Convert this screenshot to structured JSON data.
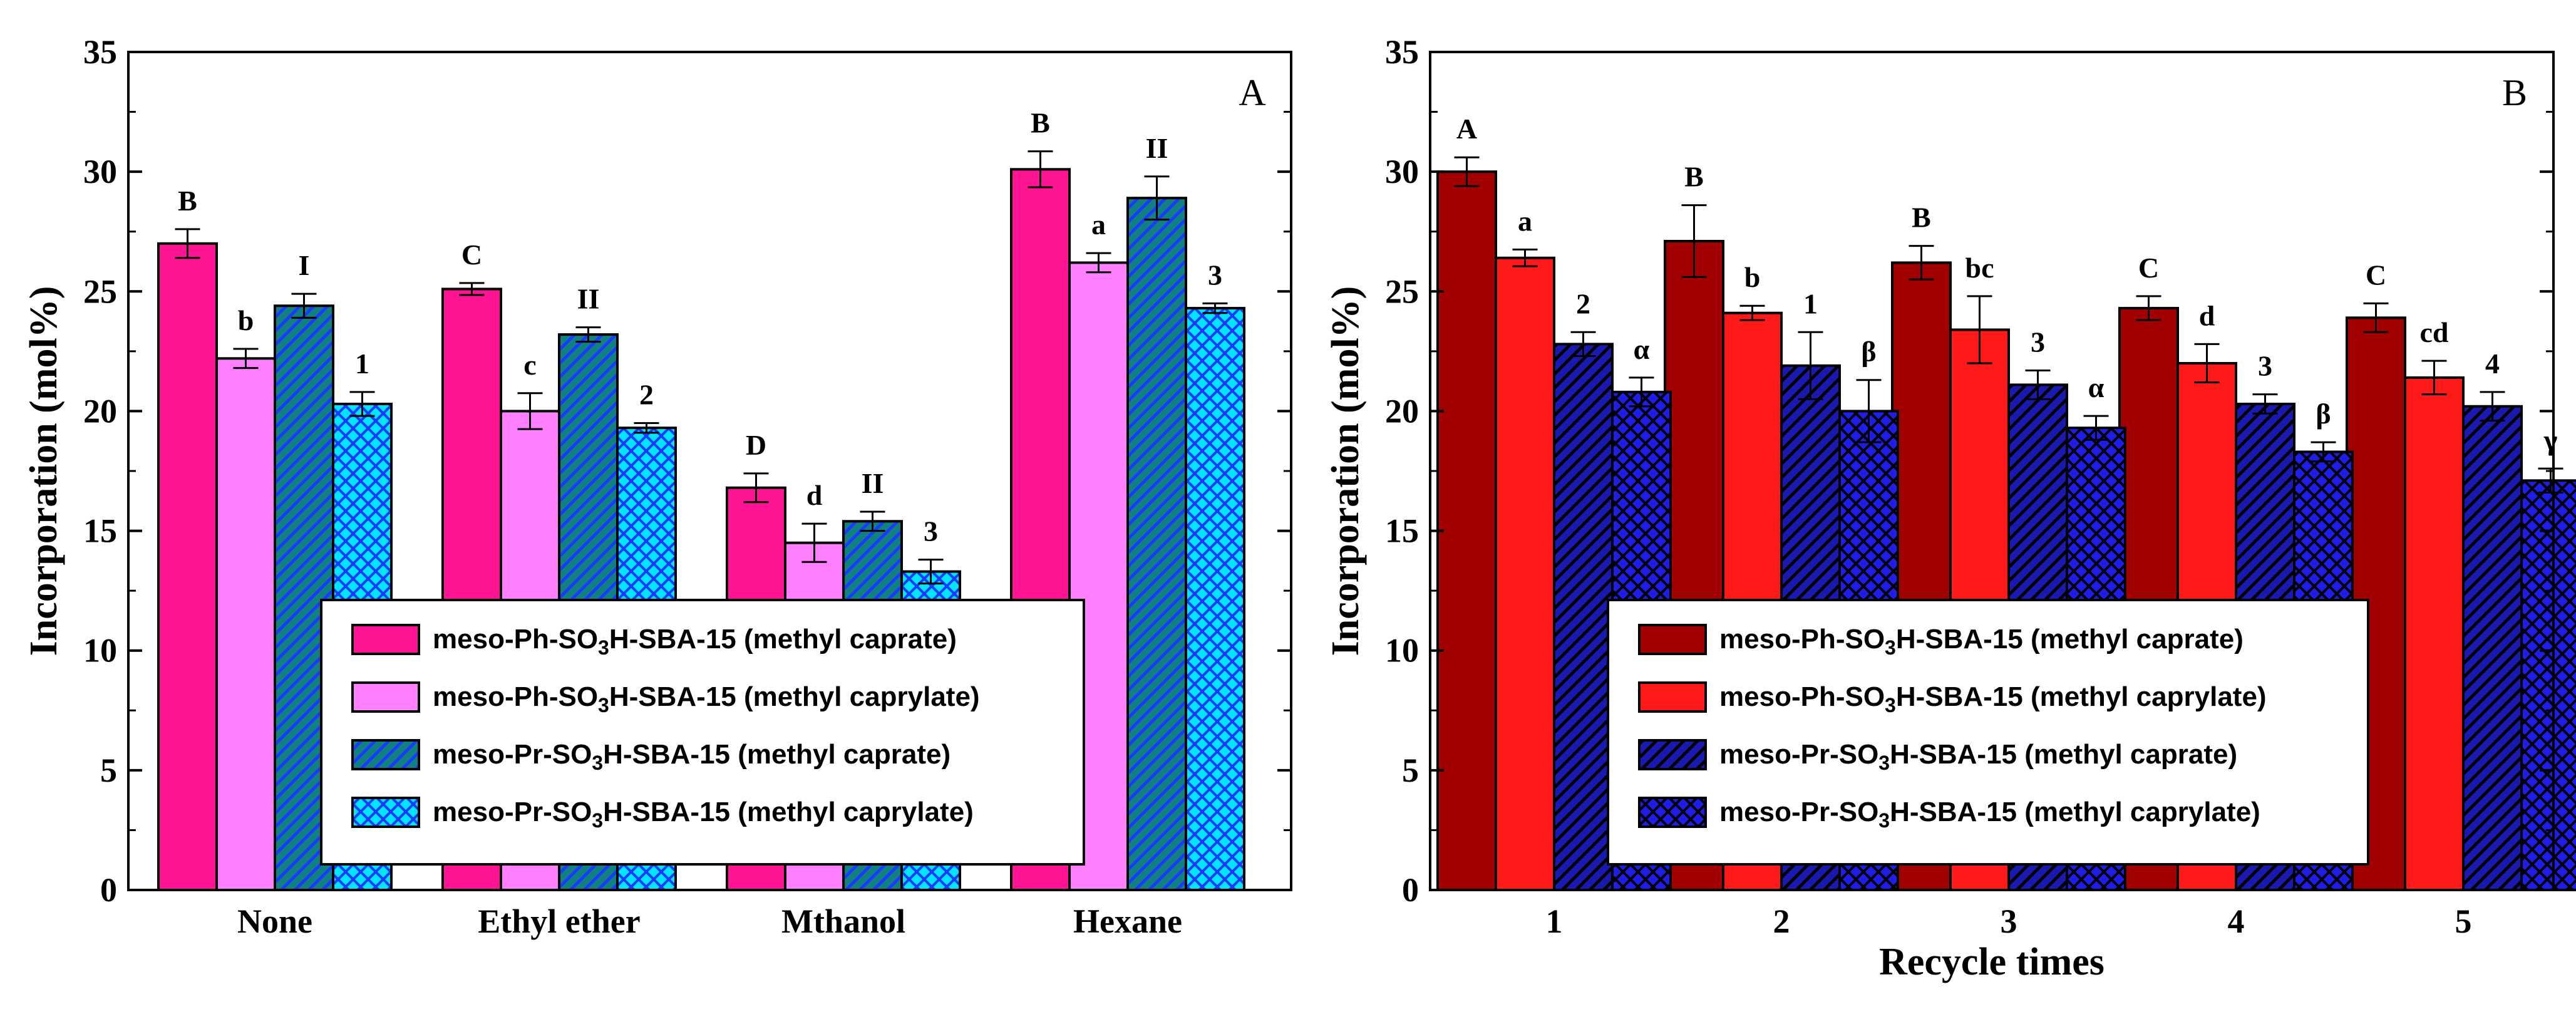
{
  "chart_data": [
    {
      "type": "bar",
      "panel_label": "A",
      "title": "",
      "xlabel": "",
      "ylabel": "Incorporation (mol%)",
      "ylim": [
        0,
        35
      ],
      "yticks": [
        "0",
        "5",
        "10",
        "15",
        "20",
        "25",
        "30",
        "35"
      ],
      "categories": [
        "None",
        "Ethyl ether",
        "Mthanol",
        "Hexane"
      ],
      "legend_position": "lower-right",
      "series": [
        {
          "name": "meso-Ph-SO3H-SBA-15 (methyl caprate)",
          "legend_parts": [
            "meso-Ph-SO",
            "3",
            "H-SBA-15 (methyl caprate)"
          ],
          "color": "#ff1493",
          "pattern": "solid",
          "values": [
            27.0,
            25.1,
            16.8,
            30.1
          ],
          "errors": [
            0.6,
            0.25,
            0.6,
            0.75
          ],
          "labels": [
            "B",
            "C",
            "D",
            "B"
          ]
        },
        {
          "name": "meso-Ph-SO3H-SBA-15 (methyl caprylate)",
          "legend_parts": [
            "meso-Ph-SO",
            "3",
            "H-SBA-15 (methyl caprylate)"
          ],
          "color": "#ff80ff",
          "pattern": "solid",
          "values": [
            22.2,
            20.0,
            14.5,
            26.2
          ],
          "errors": [
            0.4,
            0.75,
            0.8,
            0.4
          ],
          "labels": [
            "b",
            "c",
            "d",
            "a"
          ]
        },
        {
          "name": "meso-Pr-SO3H-SBA-15 (methyl caprate)",
          "legend_parts": [
            "meso-Pr-SO",
            "3",
            "H-SBA-15 (methyl caprate)"
          ],
          "color": "#108080",
          "pattern": "diag",
          "pattern_color": "#1a3aff",
          "values": [
            24.4,
            23.2,
            15.4,
            28.9
          ],
          "errors": [
            0.5,
            0.3,
            0.4,
            0.9
          ],
          "labels": [
            "I",
            "II",
            "II",
            "II"
          ]
        },
        {
          "name": "meso-Pr-SO3H-SBA-15 (methyl caprylate)",
          "legend_parts": [
            "meso-Pr-SO",
            "3",
            "H-SBA-15 (methyl caprylate)"
          ],
          "color": "#00e5ff",
          "pattern": "cross",
          "pattern_color": "#1a3aff",
          "values": [
            20.3,
            19.3,
            13.3,
            24.3
          ],
          "errors": [
            0.5,
            0.2,
            0.5,
            0.2
          ],
          "labels": [
            "1",
            "2",
            "3",
            "3"
          ]
        }
      ]
    },
    {
      "type": "bar",
      "panel_label": "B",
      "title": "",
      "xlabel": "Recycle times",
      "ylabel": "Incorporation (mol%)",
      "ylim": [
        0,
        35
      ],
      "yticks": [
        "0",
        "5",
        "10",
        "15",
        "20",
        "25",
        "30",
        "35"
      ],
      "categories": [
        "1",
        "2",
        "3",
        "4",
        "5"
      ],
      "legend_position": "lower-right",
      "series": [
        {
          "name": "meso-Ph-SO3H-SBA-15 (methyl caprate)",
          "legend_parts": [
            "meso-Ph-SO",
            "3",
            "H-SBA-15 (methyl caprate)"
          ],
          "color": "#a00000",
          "pattern": "solid",
          "values": [
            30.0,
            27.1,
            26.2,
            24.3,
            23.9
          ],
          "errors": [
            0.6,
            1.5,
            0.7,
            0.5,
            0.6
          ],
          "labels": [
            "A",
            "B",
            "B",
            "C",
            "C"
          ]
        },
        {
          "name": "meso-Ph-SO3H-SBA-15 (methyl caprylate)",
          "legend_parts": [
            "meso-Ph-SO",
            "3",
            "H-SBA-15 (methyl caprylate)"
          ],
          "color": "#ff1a1a",
          "pattern": "solid",
          "values": [
            26.4,
            24.1,
            23.4,
            22.0,
            21.4
          ],
          "errors": [
            0.35,
            0.3,
            1.4,
            0.8,
            0.7
          ],
          "labels": [
            "a",
            "b",
            "bc",
            "d",
            "cd"
          ]
        },
        {
          "name": "meso-Pr-SO3H-SBA-15 (methyl caprate)",
          "legend_parts": [
            "meso-Pr-SO",
            "3",
            "H-SBA-15 (methyl caprate)"
          ],
          "color": "#1a1ab0",
          "pattern": "diag",
          "pattern_color": "#000000",
          "values": [
            22.8,
            21.9,
            21.1,
            20.3,
            20.2
          ],
          "errors": [
            0.5,
            1.4,
            0.6,
            0.4,
            0.6
          ],
          "labels": [
            "2",
            "1",
            "3",
            "3",
            "4"
          ]
        },
        {
          "name": "meso-Pr-SO3H-SBA-15 (methyl caprylate)",
          "legend_parts": [
            "meso-Pr-SO",
            "3",
            "H-SBA-15 (methyl caprylate)"
          ],
          "color": "#1e1ee8",
          "pattern": "cross",
          "pattern_color": "#000000",
          "values": [
            20.8,
            20.0,
            19.3,
            18.3,
            17.1
          ],
          "errors": [
            0.6,
            1.3,
            0.5,
            0.4,
            0.5
          ],
          "labels": [
            "α",
            "β",
            "α",
            "β",
            "γ"
          ]
        }
      ]
    }
  ]
}
